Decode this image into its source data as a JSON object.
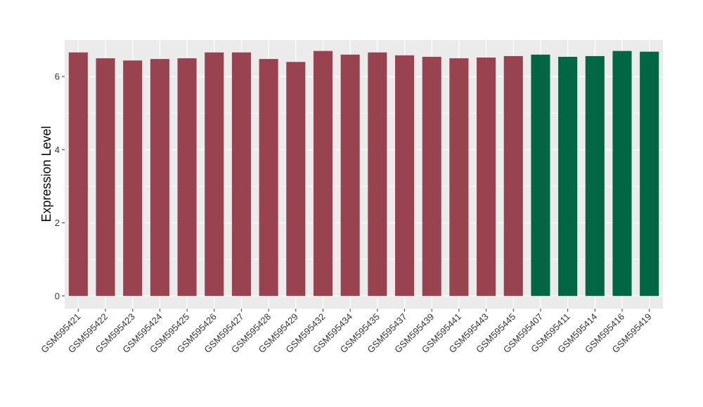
{
  "chart_data": {
    "type": "bar",
    "title": "",
    "xlabel": "",
    "ylabel": "Expression Level",
    "ylim": [
      -0.35,
      7.0
    ],
    "yticks": [
      0,
      2,
      4,
      6
    ],
    "grid": true,
    "categories": [
      "GSM595421",
      "GSM595422",
      "GSM595423",
      "GSM595424",
      "GSM595425",
      "GSM595426",
      "GSM595427",
      "GSM595428",
      "GSM595429",
      "GSM595432",
      "GSM595434",
      "GSM595435",
      "GSM595437",
      "GSM595439",
      "GSM595441",
      "GSM595443",
      "GSM595445",
      "GSM595407",
      "GSM595411",
      "GSM595414",
      "GSM595416",
      "GSM595419"
    ],
    "values": [
      6.66,
      6.5,
      6.44,
      6.48,
      6.5,
      6.66,
      6.66,
      6.48,
      6.4,
      6.7,
      6.6,
      6.66,
      6.58,
      6.54,
      6.5,
      6.52,
      6.56,
      6.6,
      6.54,
      6.56,
      6.7,
      6.68
    ],
    "groups": [
      "a",
      "a",
      "a",
      "a",
      "a",
      "a",
      "a",
      "a",
      "a",
      "a",
      "a",
      "a",
      "a",
      "a",
      "a",
      "a",
      "a",
      "b",
      "b",
      "b",
      "b",
      "b"
    ],
    "colors": {
      "a": "#994250",
      "b": "#006644"
    }
  }
}
